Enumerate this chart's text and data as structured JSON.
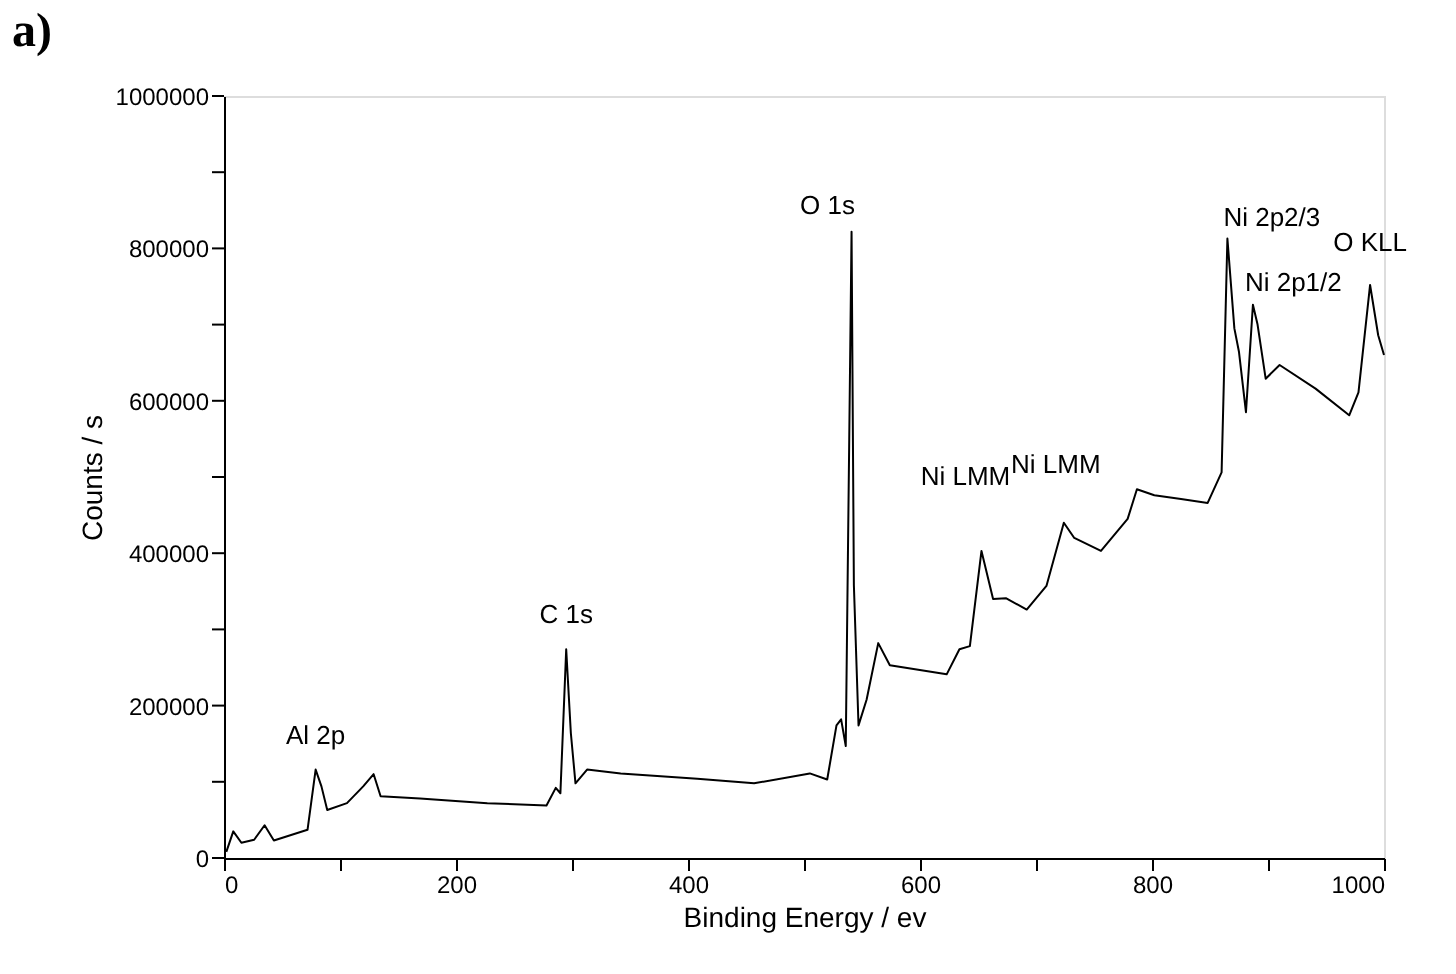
{
  "chart_data": {
    "type": "line",
    "title": "a)",
    "xlabel": "Binding Energy / ev",
    "ylabel": "Counts / s",
    "x": [
      2,
      8,
      15,
      26,
      35,
      43,
      72,
      79,
      84,
      89,
      106,
      120,
      129,
      135,
      169,
      227,
      278,
      286,
      290,
      295,
      299,
      303,
      313,
      342,
      408,
      457,
      505,
      520,
      528,
      532,
      536,
      539,
      541,
      543,
      547,
      554,
      564,
      574,
      623,
      634,
      643,
      653,
      663,
      674,
      692,
      709,
      724,
      733,
      756,
      779,
      787,
      802,
      825,
      848,
      860,
      865,
      871,
      875,
      881,
      887,
      891,
      898,
      910,
      941,
      970,
      978,
      988,
      995,
      1000
    ],
    "series": [
      {
        "color": "#000000",
        "values": [
          8000,
          35000,
          20000,
          24000,
          43000,
          23000,
          37000,
          116000,
          94000,
          63000,
          72000,
          94000,
          110000,
          81000,
          78000,
          72000,
          69000,
          92000,
          85000,
          274000,
          164000,
          98000,
          116000,
          111000,
          104000,
          98000,
          111000,
          103000,
          174000,
          182000,
          147000,
          550000,
          822000,
          358000,
          174000,
          208000,
          282000,
          253000,
          241000,
          274000,
          278000,
          403000,
          340000,
          341000,
          326000,
          357000,
          440000,
          420000,
          403000,
          445000,
          484000,
          476000,
          471000,
          466000,
          506000,
          813000,
          695000,
          664000,
          585000,
          726000,
          700000,
          629000,
          647000,
          616000,
          581000,
          611000,
          752000,
          686000,
          660000
        ]
      }
    ],
    "xlim": [
      0,
      1000
    ],
    "ylim": [
      0,
      1000000
    ],
    "xticks": [
      0,
      {
        "value": 100,
        "label": null
      },
      200,
      {
        "value": 300,
        "label": null
      },
      400,
      {
        "value": 500,
        "label": null
      },
      600,
      {
        "value": 700,
        "label": null
      },
      800,
      {
        "value": 900,
        "label": null
      },
      1000
    ],
    "yticks": [
      0,
      {
        "value": 100000,
        "label": null
      },
      200000,
      {
        "value": 300000,
        "label": null
      },
      400000,
      {
        "value": 500000,
        "label": null
      },
      600000,
      {
        "value": 700000,
        "label": null
      },
      800000,
      {
        "value": 900000,
        "label": null
      },
      1000000
    ],
    "annotations": [
      {
        "text": "Al 2p",
        "x": 79,
        "y": 116000
      },
      {
        "text": "C 1s",
        "x": 295,
        "y": 274000
      },
      {
        "text": "O 1s",
        "x": 541,
        "y": 822000
      },
      {
        "text": "Ni LMM",
        "x": 653,
        "y": 403000
      },
      {
        "text": "Ni LMM",
        "x": 724,
        "y": 440000
      },
      {
        "text": "Ni 2p2/3",
        "x": 865,
        "y": 813000
      },
      {
        "text": "Ni 2p1/2",
        "x": 887,
        "y": 726000
      },
      {
        "text": "O KLL",
        "x": 988,
        "y": 752000
      }
    ],
    "grid": false,
    "marker": "none",
    "line_style": "solid"
  }
}
